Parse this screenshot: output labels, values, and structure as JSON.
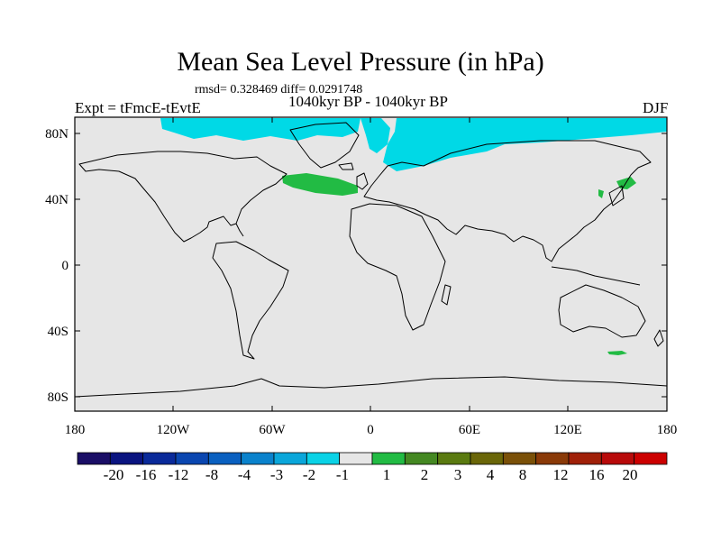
{
  "title": "Mean Sea Level Pressure (in hPa)",
  "stats": "rmsd= 0.328469 diff= 0.0291748",
  "experiment": "Expt = tFmcE-tEvtE",
  "period": "1040kyr BP - 1040kyr BP",
  "season": "DJF",
  "map": {
    "projection": "cylindrical-equidistant",
    "lon_range": [
      -180,
      180
    ],
    "lat_range": [
      -90,
      90
    ],
    "background_color": "#e6e6e6",
    "coastline_color": "#000000"
  },
  "lat_ticks": [
    "80N",
    "40N",
    "0",
    "40S",
    "80S"
  ],
  "lon_ticks": [
    "180",
    "120W",
    "60W",
    "0",
    "60E",
    "120E",
    "180"
  ],
  "colorbar": {
    "colors": [
      "#1a0e66",
      "#0a1480",
      "#0a2a9a",
      "#0a46b0",
      "#0a60c0",
      "#0a82cc",
      "#0aa6da",
      "#0ad2e6",
      "#e6e6e6",
      "#22bb44",
      "#448822",
      "#5a7a10",
      "#6a6608",
      "#7a5008",
      "#8a3a08",
      "#a02008",
      "#b80a0a",
      "#cc0000"
    ],
    "labels": [
      "-20",
      "-16",
      "-12",
      "-8",
      "-4",
      "-3",
      "-2",
      "-1",
      "1",
      "2",
      "3",
      "4",
      "8",
      "12",
      "16",
      "20"
    ]
  },
  "features": [
    {
      "name": "anomaly-cyan-north-america-arctic",
      "color": "#00d9e6"
    },
    {
      "name": "anomaly-cyan-greenland-east",
      "color": "#00d9e6"
    },
    {
      "name": "anomaly-cyan-scandinavia-siberia",
      "color": "#00d9e6"
    },
    {
      "name": "anomaly-green-north-atlantic",
      "color": "#22bb44"
    },
    {
      "name": "anomaly-green-japan-kamchatka",
      "color": "#22bb44"
    },
    {
      "name": "anomaly-green-south-of-new-zealand",
      "color": "#22bb44"
    }
  ]
}
